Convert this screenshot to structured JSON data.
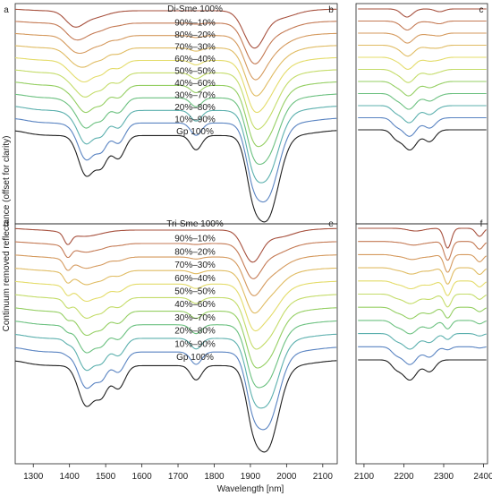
{
  "chart_data": {
    "type": "line",
    "xlabel": "Wavelength [nm]",
    "ylabel": "Continuum removed reflectance (offset for clarity)",
    "x_ticks_left": [
      1300,
      1400,
      1500,
      1600,
      1700,
      1800,
      1900,
      2000,
      2100
    ],
    "x_ticks_right": [
      2100,
      2200,
      2300,
      2400
    ],
    "xlim_left": [
      1250,
      2140
    ],
    "xlim_right": [
      2080,
      2410
    ],
    "colors": [
      "#a7513e",
      "#c47a54",
      "#d59a5e",
      "#e0bc63",
      "#e4dc6a",
      "#c4dc69",
      "#95cf63",
      "#6cc180",
      "#5cb0ae",
      "#5a84c2",
      "#202020"
    ],
    "panels": [
      {
        "left_letter": "a",
        "mid_letter": "b",
        "right_letter": "c",
        "labels": [
          "Di-Sme 100%",
          "90%–10%",
          "80%–20%",
          "70%–30%",
          "60%–40%",
          "50%–50%",
          "40%–60%",
          "30%–70%",
          "20%–80%",
          "10%–90%",
          "Gp 100%"
        ],
        "kind": "di"
      },
      {
        "left_letter": "d",
        "mid_letter": "e",
        "right_letter": "f",
        "labels": [
          "Tri-Sme 100%",
          "90%–10%",
          "80%–20%",
          "70%–30%",
          "60%–40%",
          "50%–50%",
          "40%–60%",
          "30%–70%",
          "20%–80%",
          "10%–90%",
          "Gp 100%"
        ],
        "kind": "tri"
      }
    ]
  }
}
